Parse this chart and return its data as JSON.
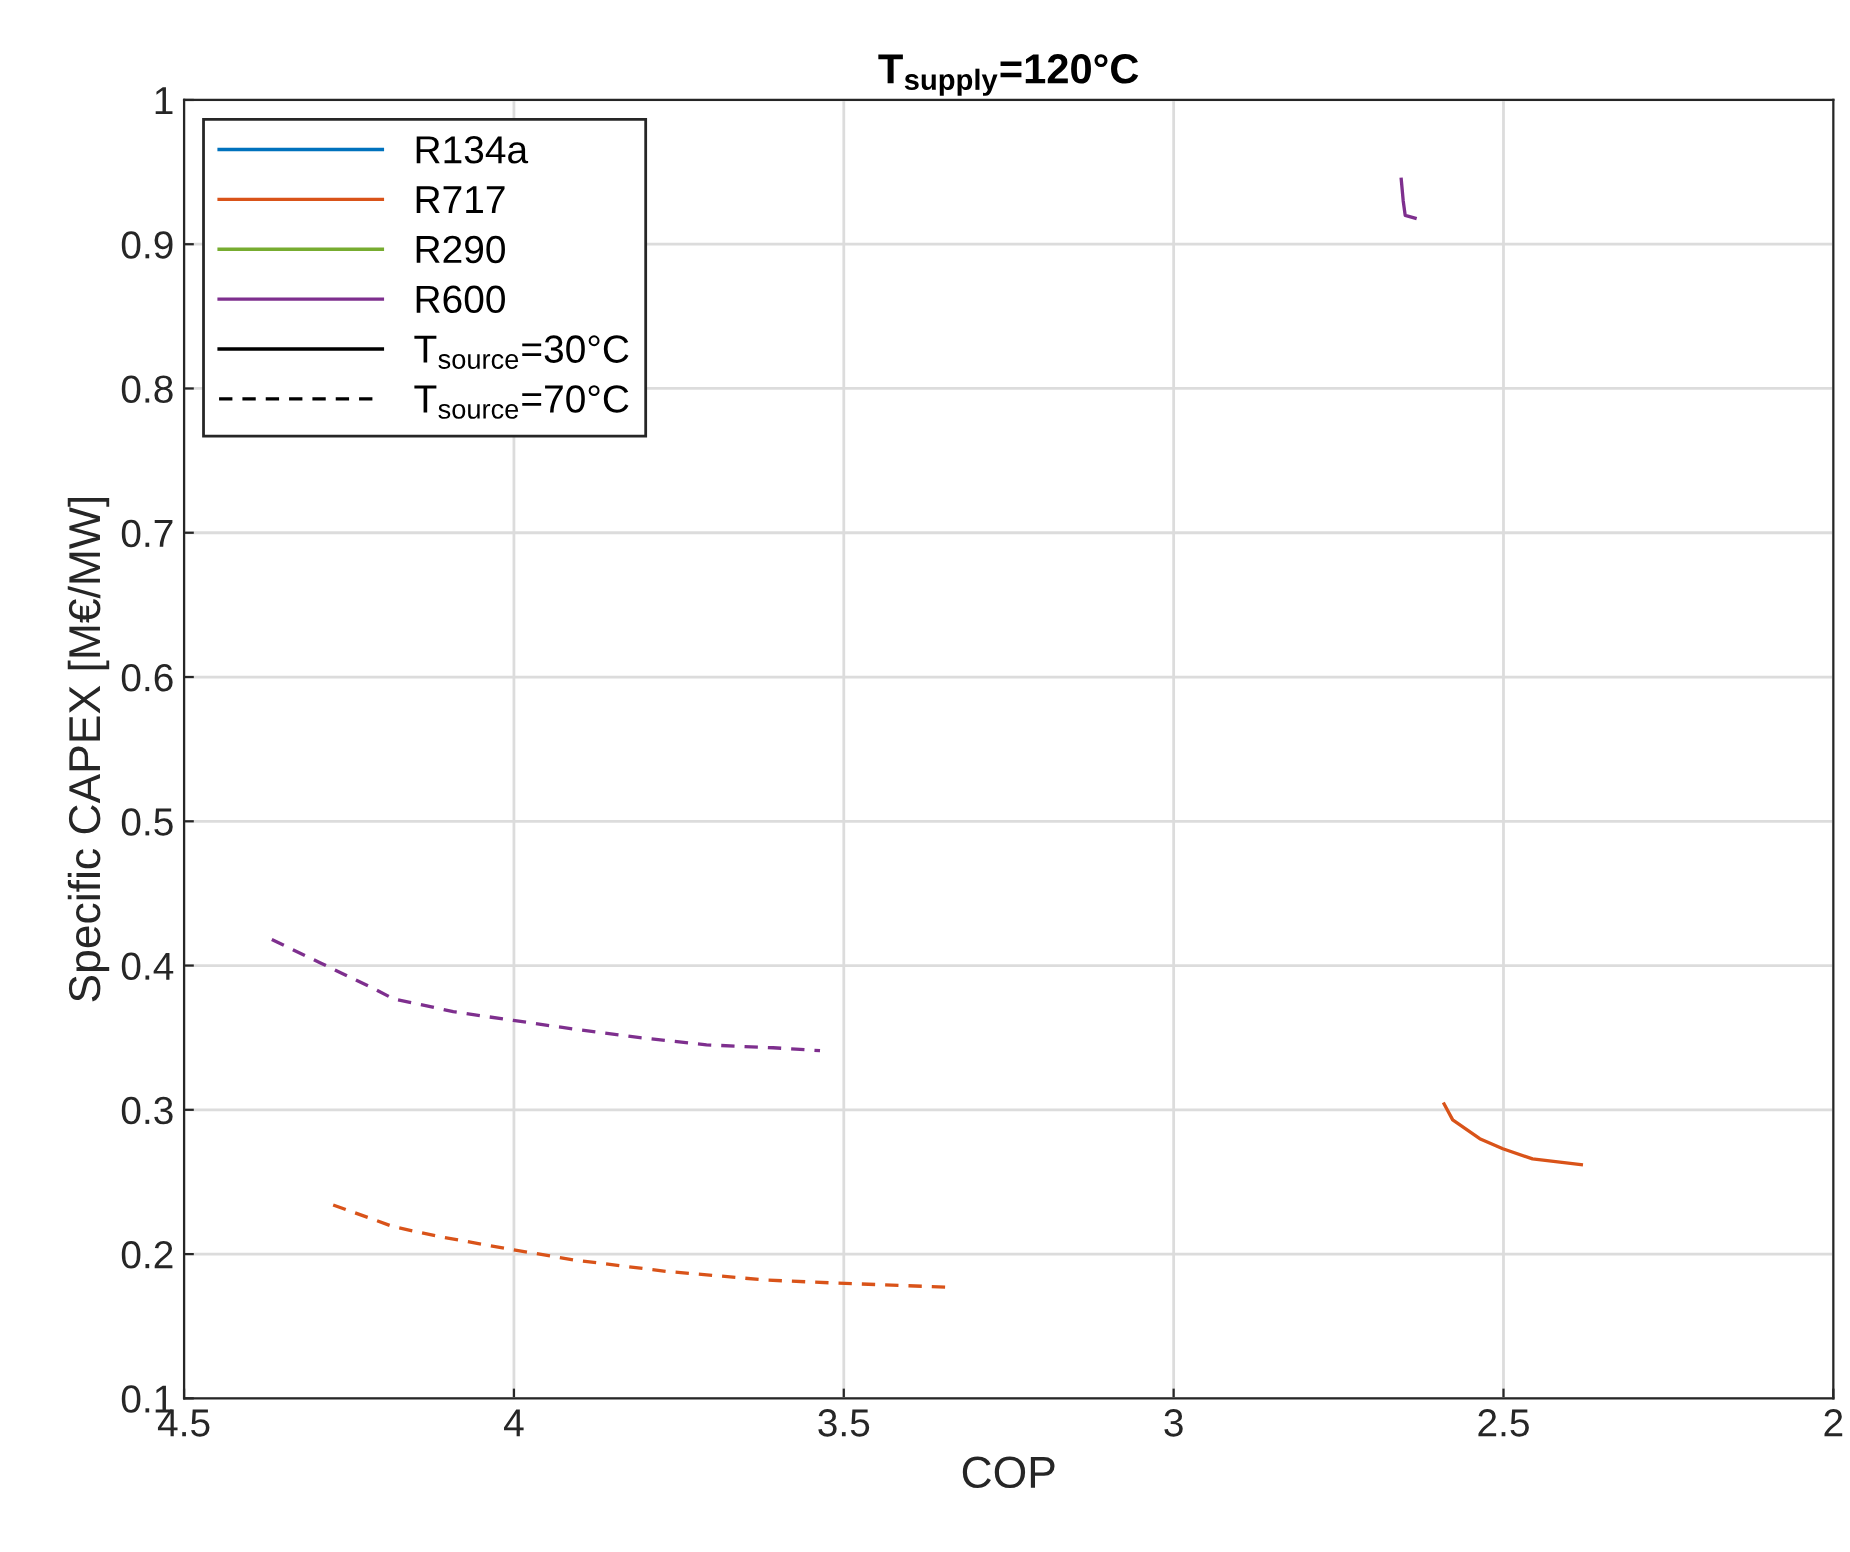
{
  "chart_data": {
    "type": "line",
    "title": "T$_{supply}$=120°C",
    "xlabel": "COP",
    "ylabel": "Specific CAPEX [M€/MW]",
    "xlim": [
      4.5,
      2
    ],
    "xticks": [
      4.5,
      4,
      3.5,
      3,
      2.5,
      2
    ],
    "ylim": [
      0.1,
      1
    ],
    "yticks": [
      0.1,
      0.2,
      0.3,
      0.4,
      0.5,
      0.6,
      0.7,
      0.8,
      0.9,
      1
    ],
    "grid": true,
    "legend": "top left",
    "series": [
      {
        "color": "#d95319",
        "line_style": "solid",
        "x": [
          2.59,
          2.577,
          2.536,
          2.501,
          2.456,
          2.382
        ],
        "values": [
          0.304,
          0.293,
          0.28,
          0.273,
          0.266,
          0.262
        ]
      },
      {
        "color": "#d95319",
        "line_style": "dashed",
        "x": [
          4.274,
          4.213,
          4.183,
          4.112,
          4.001,
          3.91,
          3.769,
          3.617,
          3.516,
          3.339
        ],
        "values": [
          0.234,
          0.224,
          0.219,
          0.212,
          0.203,
          0.196,
          0.188,
          0.182,
          0.18,
          0.177
        ]
      },
      {
        "color": "#7e2f8e",
        "line_style": "solid",
        "x": [
          2.655,
          2.652,
          2.649,
          2.634
        ],
        "values": [
          0.945,
          0.93,
          0.92,
          0.918
        ]
      },
      {
        "color": "#7e2f8e",
        "line_style": "dashed",
        "x": [
          4.367,
          4.294,
          4.208,
          4.183,
          4.152,
          4.092,
          4.001,
          3.91,
          3.809,
          3.708,
          3.607,
          3.536
        ],
        "values": [
          0.418,
          0.402,
          0.383,
          0.377,
          0.374,
          0.368,
          0.362,
          0.356,
          0.35,
          0.345,
          0.343,
          0.341
        ]
      },
      {
        "name": "R134a",
        "color": "#0072bd",
        "line_style": "solid"
      },
      {
        "name": "R717",
        "color": "#d95319",
        "line_style": "solid"
      },
      {
        "name": "R290",
        "color": "#77ac30",
        "line_style": "solid"
      },
      {
        "name": "R600",
        "color": "#7e2f8e",
        "line_style": "solid"
      },
      {
        "name": "T$_{source}$=30°C",
        "color": "#000000",
        "line_style": "solid"
      },
      {
        "name": "T$_{source}$=70°C",
        "color": "#000000",
        "line_style": "dashed"
      }
    ]
  }
}
